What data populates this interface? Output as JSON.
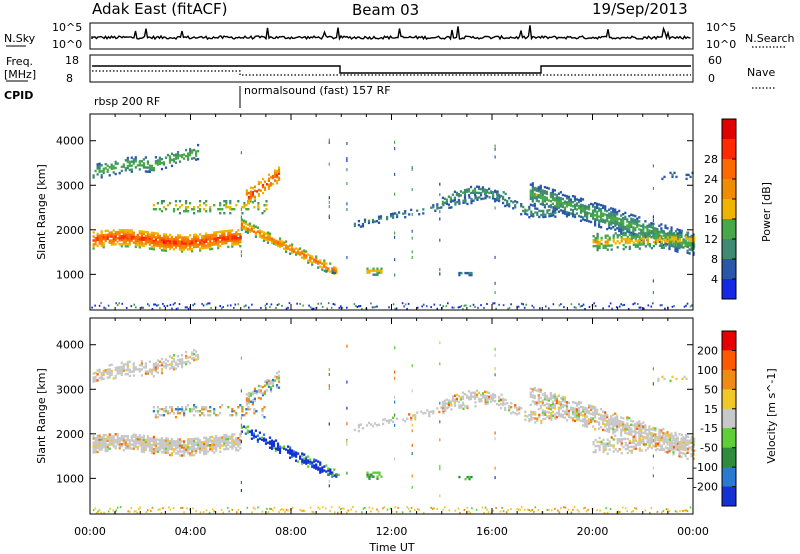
{
  "header": {
    "station": "Adak East (fitACF)",
    "beam": "Beam 03",
    "date": "19/Sep/2013"
  },
  "top_panels": {
    "nsky_label": "N.Sky",
    "nsky_ticks": [
      "10^5",
      "10^0"
    ],
    "nsearch_label": "N.Search",
    "nsearch_ticks": [
      "10^5",
      "10^0"
    ],
    "freq_label_1": "Freq.",
    "freq_label_2": "[MHz]",
    "freq_ticks": [
      "18",
      "8"
    ],
    "nave_label": "Nave",
    "nave_ticks": [
      "60",
      "0"
    ],
    "cpid_label": "CPID",
    "cpid_segments": [
      "rbsp 200 RF",
      "normalsound (fast) 157 RF"
    ]
  },
  "chart_data": [
    {
      "type": "heatmap",
      "title": "",
      "xlabel": "Time UT",
      "ylabel": "Slant Range [km]",
      "x_ticks": [
        "00:00",
        "04:00",
        "08:00",
        "12:00",
        "16:00",
        "20:00",
        "00:00"
      ],
      "y_ticks": [
        "1000",
        "2000",
        "3000",
        "4000"
      ],
      "ylim": [
        200,
        4600
      ],
      "colorbar_label": "Power [dB]",
      "colorbar_ticks": [
        "4",
        "8",
        "12",
        "16",
        "20",
        "24",
        "28"
      ],
      "colorbar_colors": [
        "#1428e6",
        "#2a57a8",
        "#3e8a72",
        "#48a848",
        "#f0b400",
        "#f08c00",
        "#ff6a00",
        "#ff2a00",
        "#e00000"
      ]
    },
    {
      "type": "heatmap",
      "title": "",
      "xlabel": "Time UT",
      "ylabel": "Slant Range [km]",
      "x_ticks": [
        "00:00",
        "04:00",
        "08:00",
        "12:00",
        "16:00",
        "20:00",
        "00:00"
      ],
      "y_ticks": [
        "1000",
        "2000",
        "3000",
        "4000"
      ],
      "ylim": [
        200,
        4600
      ],
      "colorbar_label": "Velocity [m s^-1]",
      "colorbar_ticks": [
        "200",
        "100",
        "50",
        "15",
        "-15",
        "-50",
        "-100",
        "-200"
      ],
      "colorbar_colors": [
        "#1432d2",
        "#2a7ad2",
        "#2e8c3c",
        "#5fcf37",
        "#c8c8c8",
        "#f0c828",
        "#f08c14",
        "#ff5a00",
        "#e60000"
      ]
    }
  ]
}
